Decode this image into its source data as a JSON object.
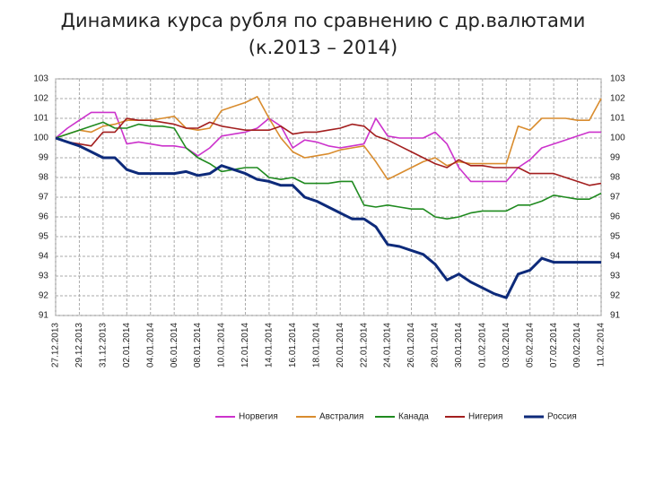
{
  "chart_data": {
    "type": "line",
    "title": "Динамика курса рубля по сравнению с др.валютами",
    "subtitle": "(к.2013 – 2014)",
    "categories": [
      "27.12.2013",
      null,
      "29.12.2013",
      null,
      "31.12.2013",
      null,
      "02.01.2014",
      null,
      "04.01.2014",
      null,
      "06.01.2014",
      null,
      "08.01.2014",
      null,
      "10.01.2014",
      null,
      "12.01.2014",
      null,
      "14.01.2014",
      null,
      "16.01.2014",
      null,
      "18.01.2014",
      null,
      "20.01.2014",
      null,
      "22.01.2014",
      null,
      "24.01.2014",
      null,
      "26.01.2014",
      null,
      "28.01.2014",
      null,
      "30.01.2014",
      null,
      "01.02.2014",
      null,
      "03.02.2014",
      null,
      "05.02.2014",
      null,
      "07.02.2014",
      null,
      "09.02.2014",
      null,
      "11.02.2014"
    ],
    "series": [
      {
        "name": "Норвегия",
        "color": "#cc33cc",
        "values": [
          100,
          100.5,
          100.9,
          101.3,
          101.3,
          101.3,
          99.7,
          99.8,
          99.7,
          99.6,
          99.6,
          99.5,
          99.1,
          99.5,
          100.1,
          100.2,
          100.3,
          100.5,
          101.0,
          100.6,
          99.5,
          99.9,
          99.8,
          99.6,
          99.5,
          99.6,
          99.7,
          101.0,
          100.1,
          100.0,
          100.0,
          100.0,
          100.3,
          99.7,
          98.5,
          97.8,
          97.8,
          97.8,
          97.8,
          98.5,
          98.9,
          99.5,
          99.7,
          99.9,
          100.1,
          100.3,
          100.3
        ]
      },
      {
        "name": "Австралия",
        "color": "#d98c2e",
        "values": [
          100,
          100.2,
          100.4,
          100.3,
          100.6,
          100.7,
          100.9,
          100.9,
          100.9,
          101.0,
          101.1,
          100.5,
          100.4,
          100.5,
          101.4,
          101.6,
          101.8,
          102.1,
          101.0,
          100.0,
          99.3,
          99.0,
          99.1,
          99.2,
          99.4,
          99.5,
          99.6,
          98.8,
          97.9,
          98.2,
          98.5,
          98.8,
          99.0,
          98.6,
          98.8,
          98.7,
          98.7,
          98.7,
          98.7,
          100.6,
          100.4,
          101.0,
          101.0,
          101.0,
          100.9,
          100.9,
          102.0
        ]
      },
      {
        "name": "Канада",
        "color": "#1f8a1f",
        "values": [
          100,
          100.2,
          100.4,
          100.6,
          100.8,
          100.5,
          100.5,
          100.7,
          100.6,
          100.6,
          100.5,
          99.5,
          99.0,
          98.7,
          98.3,
          98.4,
          98.5,
          98.5,
          98.0,
          97.9,
          98.0,
          97.7,
          97.7,
          97.7,
          97.8,
          97.8,
          96.6,
          96.5,
          96.6,
          96.5,
          96.4,
          96.4,
          96.0,
          95.9,
          96.0,
          96.2,
          96.3,
          96.3,
          96.3,
          96.6,
          96.6,
          96.8,
          97.1,
          97.0,
          96.9,
          96.9,
          97.2
        ]
      },
      {
        "name": "Нигерия",
        "color": "#a31f1f",
        "values": [
          100,
          99.8,
          99.7,
          99.6,
          100.3,
          100.3,
          101.0,
          100.9,
          100.9,
          100.8,
          100.7,
          100.5,
          100.5,
          100.8,
          100.6,
          100.5,
          100.4,
          100.4,
          100.4,
          100.6,
          100.2,
          100.3,
          100.3,
          100.4,
          100.5,
          100.7,
          100.6,
          100.1,
          99.9,
          99.6,
          99.3,
          99.0,
          98.7,
          98.5,
          98.9,
          98.6,
          98.6,
          98.5,
          98.5,
          98.5,
          98.2,
          98.2,
          98.2,
          98.0,
          97.8,
          97.6,
          97.7
        ]
      },
      {
        "name": "Россия",
        "color": "#0d2a7a",
        "values": [
          100,
          99.8,
          99.6,
          99.3,
          99.0,
          99.0,
          98.4,
          98.2,
          98.2,
          98.2,
          98.2,
          98.3,
          98.1,
          98.2,
          98.6,
          98.4,
          98.2,
          97.9,
          97.8,
          97.6,
          97.6,
          97.0,
          96.8,
          96.5,
          96.2,
          95.9,
          95.9,
          95.5,
          94.6,
          94.5,
          94.3,
          94.1,
          93.6,
          92.8,
          93.1,
          92.7,
          92.4,
          92.1,
          91.9,
          93.1,
          93.3,
          93.9,
          93.7,
          93.7,
          93.7,
          93.7,
          93.7
        ]
      }
    ],
    "ylim": [
      91,
      103
    ],
    "yticks": [
      91,
      92,
      93,
      94,
      95,
      96,
      97,
      98,
      99,
      100,
      101,
      102,
      103
    ],
    "grid": true,
    "legend": "bottom"
  }
}
